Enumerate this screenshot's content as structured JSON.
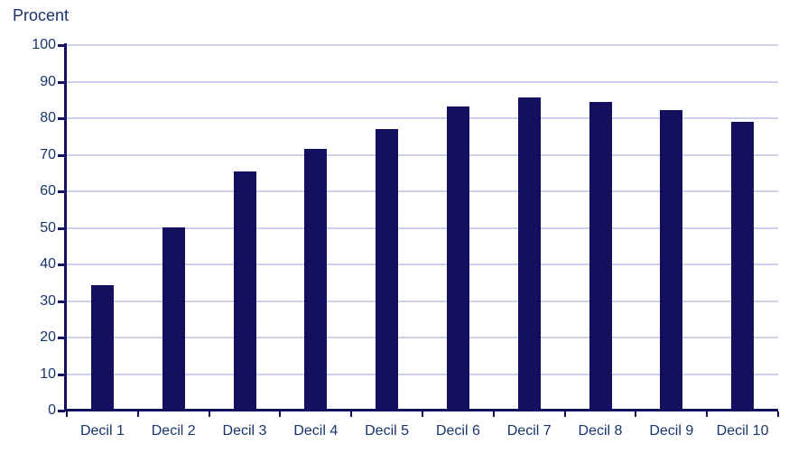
{
  "chart_data": {
    "type": "bar",
    "title": "",
    "ylabel": "Procent",
    "xlabel": "",
    "categories": [
      "Decil 1",
      "Decil 2",
      "Decil 3",
      "Decil 4",
      "Decil 5",
      "Decil 6",
      "Decil 7",
      "Decil 8",
      "Decil 9",
      "Decil 10"
    ],
    "values": [
      34.2,
      50.1,
      65.4,
      71.5,
      77.0,
      83.2,
      85.6,
      84.5,
      82.3,
      78.9
    ],
    "ylim": [
      0,
      100
    ],
    "yticks": [
      0,
      10,
      20,
      30,
      40,
      50,
      60,
      70,
      80,
      90,
      100
    ],
    "grid": "horizontal",
    "legend": "none",
    "colors": {
      "bar": "#140f5f",
      "axis": "#140f5f",
      "gridline": "#ccd0ea",
      "text": "#17356b",
      "background": "#ffffff"
    }
  }
}
